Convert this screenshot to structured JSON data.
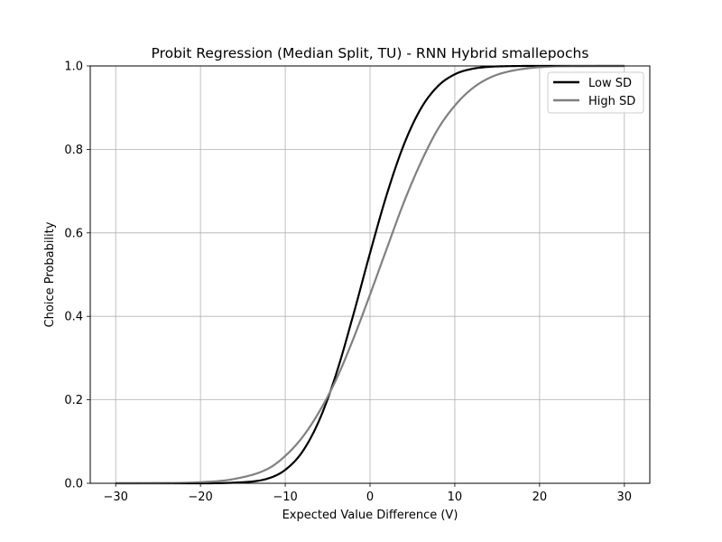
{
  "chart_data": {
    "type": "line",
    "title": "Probit Regression (Median Split, TU) - RNN Hybrid smallepochs",
    "xlabel": "Expected Value Difference (V)",
    "ylabel": "Choice Probability",
    "xlim": [
      -33,
      33
    ],
    "ylim": [
      0,
      1
    ],
    "xticks": [
      -30,
      -20,
      -10,
      0,
      10,
      20,
      30
    ],
    "yticks": [
      0.0,
      0.2,
      0.4,
      0.6,
      0.8,
      1.0
    ],
    "xtick_labels": [
      "−30",
      "−20",
      "−10",
      "0",
      "10",
      "20",
      "30"
    ],
    "ytick_labels": [
      "0.0",
      "0.2",
      "0.4",
      "0.6",
      "0.8",
      "1.0"
    ],
    "grid": true,
    "legend_position": "top-right",
    "x": [
      -30,
      -25,
      -20,
      -16,
      -12,
      -10,
      -8,
      -6,
      -4,
      -2,
      0,
      2,
      4,
      6,
      8,
      10,
      12,
      14,
      16,
      20,
      25,
      30
    ],
    "series": [
      {
        "name": "Low SD",
        "color": "#000000",
        "values": [
          0.0,
          0.0,
          0.0,
          0.0015,
          0.0117,
          0.0322,
          0.075,
          0.1506,
          0.2614,
          0.4015,
          0.5517,
          0.6935,
          0.8118,
          0.8979,
          0.9515,
          0.98,
          0.9928,
          0.9978,
          0.9994,
          1.0,
          1.0,
          1.0
        ]
      },
      {
        "name": "High SD",
        "color": "#808080",
        "values": [
          0.0,
          0.0003,
          0.0026,
          0.0104,
          0.0353,
          0.0655,
          0.1097,
          0.1711,
          0.2483,
          0.3446,
          0.4522,
          0.5636,
          0.6736,
          0.7689,
          0.8485,
          0.9049,
          0.945,
          0.9706,
          0.985,
          0.997,
          0.9998,
          1.0
        ]
      }
    ]
  }
}
